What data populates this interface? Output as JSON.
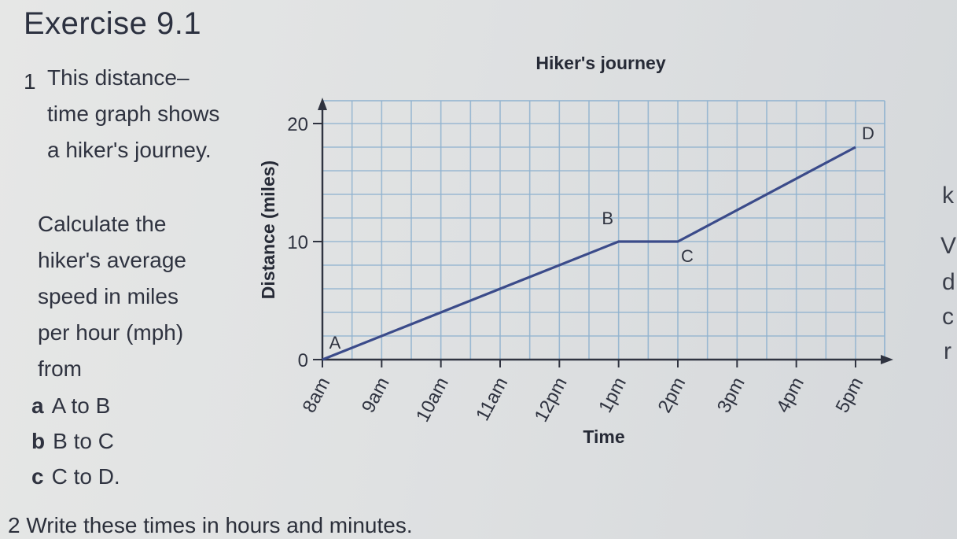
{
  "heading": "Exercise 9.1",
  "question1": {
    "number": "1",
    "intro_lines": [
      "This distance–",
      "time graph shows",
      "a hiker's journey."
    ],
    "task_lines": [
      "Calculate the",
      "hiker's average",
      "speed in miles",
      "per hour (mph)",
      "from"
    ],
    "parts": [
      {
        "letter": "a",
        "text": "A to B"
      },
      {
        "letter": "b",
        "text": "B to C"
      },
      {
        "letter": "c",
        "text": "C to D."
      }
    ]
  },
  "question2": {
    "number": "2",
    "text": "Write these times in hours and minutes."
  },
  "right_edge_letters": [
    "k",
    "V",
    "d",
    "c",
    "r"
  ],
  "chart_data": {
    "type": "line",
    "title": "Hiker's journey",
    "xlabel": "Time",
    "ylabel": "Distance (miles)",
    "x_tick_labels": [
      "8am",
      "9am",
      "10am",
      "11am",
      "12pm",
      "1pm",
      "2pm",
      "3pm",
      "4pm",
      "5pm"
    ],
    "y_tick_labels": [
      "0",
      "10",
      "20"
    ],
    "xlim": [
      0,
      9
    ],
    "ylim": [
      0,
      20
    ],
    "grid": true,
    "series": [
      {
        "points": [
          {
            "label": "A",
            "x": 0,
            "y": 0
          },
          {
            "label": "B",
            "x": 5,
            "y": 10
          },
          {
            "label": "C",
            "x": 6,
            "y": 10
          },
          {
            "label": "D",
            "x": 9,
            "y": 18
          }
        ]
      }
    ],
    "colors": {
      "line": "#3b4b8a",
      "grid": "#8fb2cf",
      "axis": "#2f3340"
    }
  }
}
